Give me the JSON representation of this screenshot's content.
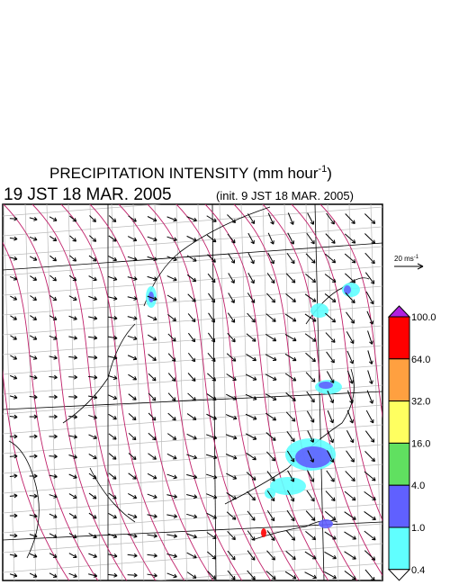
{
  "header": {
    "title": "PRECIPITATION INTENSITY (mm hour",
    "title_exponent": "-1",
    "title_close": ")",
    "valid_time": "19 JST 18 MAR. 2005",
    "init_time": "(init. 9 JST 18 MAR. 2005)"
  },
  "wind_scale": {
    "label": "20 ms",
    "exponent": "-1"
  },
  "colorbar": {
    "labels": [
      "100.0",
      "64.0",
      "32.0",
      "16.0",
      "4.0",
      "1.0",
      "0.4"
    ],
    "over_color": "#b020e0",
    "under_color": "#ffffff",
    "colors": [
      "#ff0000",
      "#ffa040",
      "#ffff60",
      "#60e060",
      "#6060ff",
      "#60ffff"
    ]
  }
}
